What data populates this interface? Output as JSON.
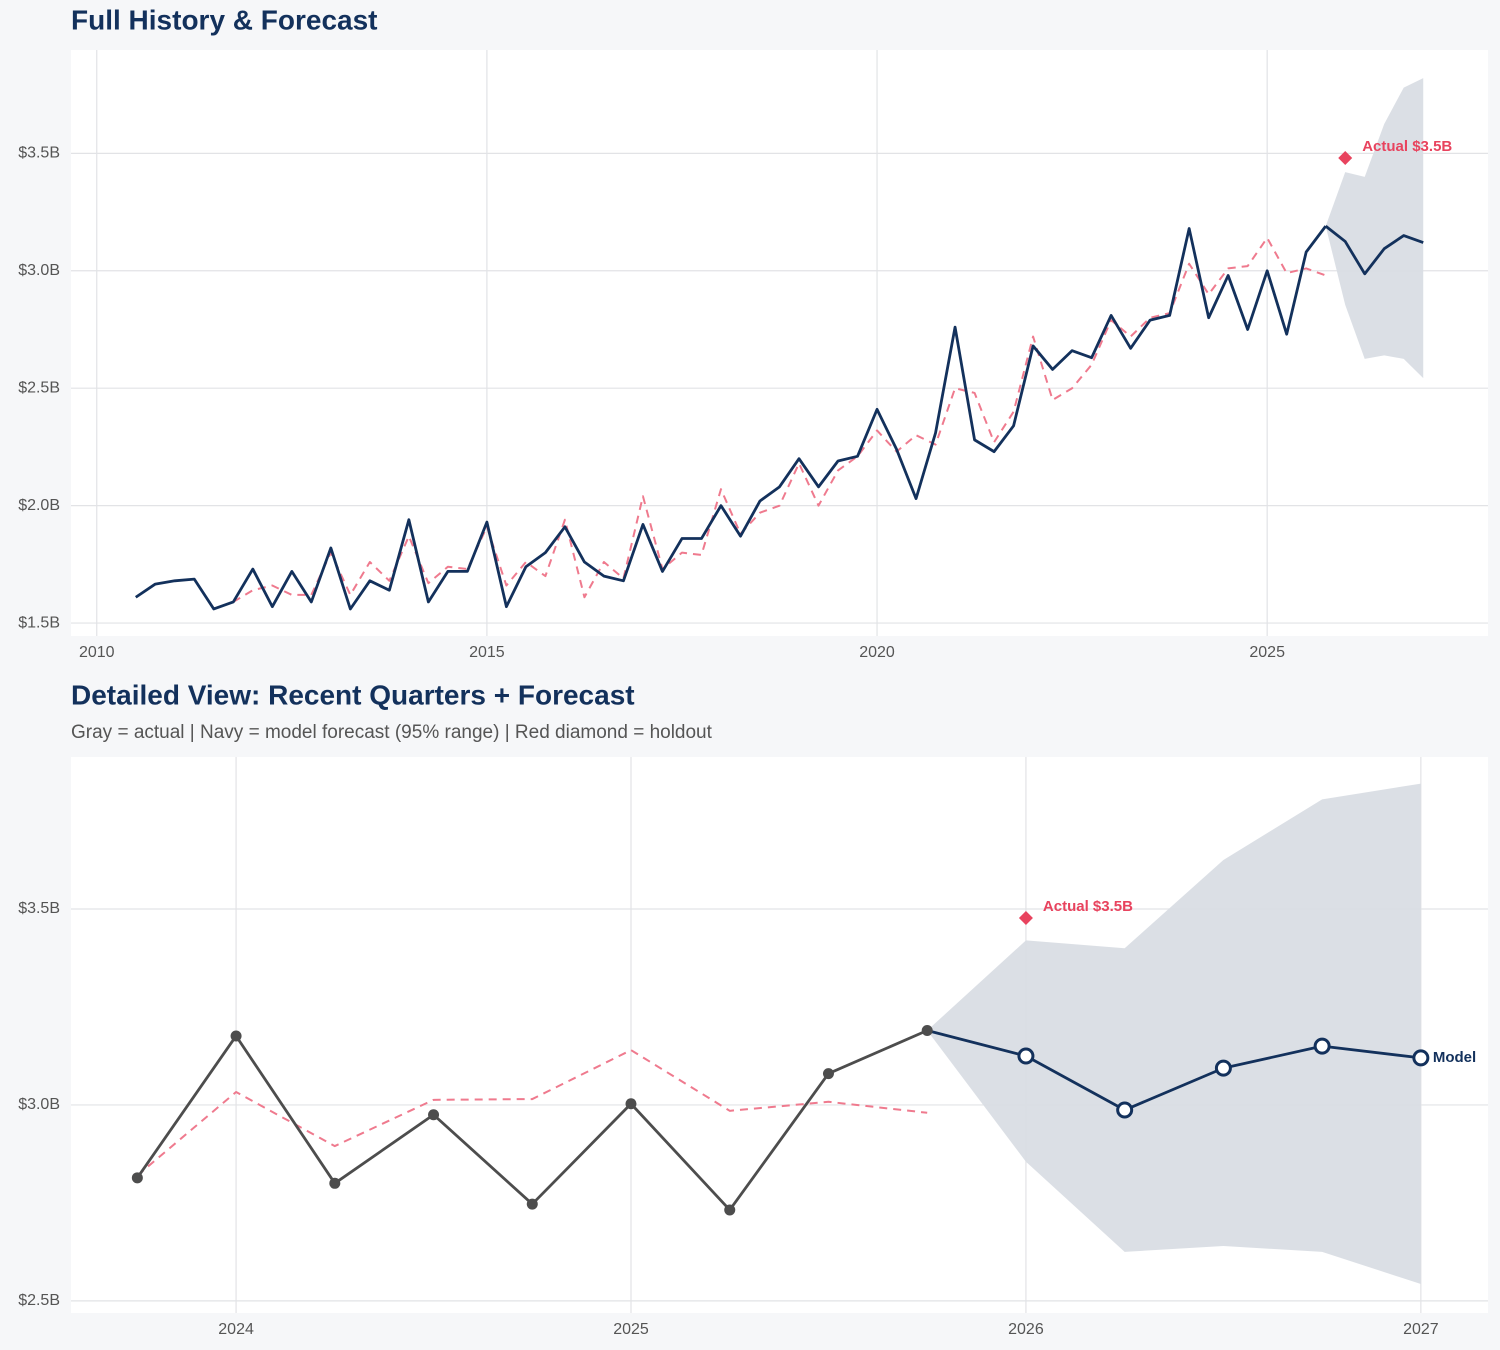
{
  "chart_data": [
    {
      "type": "line",
      "title": "Full History & Forecast",
      "xlim": [
        2009.67,
        2027.83
      ],
      "ylim": [
        1.445,
        3.94
      ],
      "xticks": [
        2010,
        2015,
        2020,
        2025
      ],
      "yticks": [
        {
          "value": 1.5,
          "label": "$1.5B"
        },
        {
          "value": 2.0,
          "label": "$2.0B"
        },
        {
          "value": 2.5,
          "label": "$2.5B"
        },
        {
          "value": 3.0,
          "label": "$3.0B"
        },
        {
          "value": 3.5,
          "label": "$3.5B"
        }
      ],
      "grid": true,
      "band": {
        "color": "#d9dde4",
        "x": [
          2025.75,
          2026.0,
          2026.25,
          2026.5,
          2026.75,
          2027.0
        ],
        "upper": [
          3.19,
          3.42,
          3.4,
          3.625,
          3.78,
          3.82
        ],
        "lower": [
          3.19,
          2.855,
          2.625,
          2.64,
          2.625,
          2.543
        ]
      },
      "series": [
        {
          "color": "#ef7a8e",
          "dash": true,
          "x": [
            2011.75,
            2012,
            2012.25,
            2012.5,
            2012.75,
            2013,
            2013.25,
            2013.5,
            2013.75,
            2014,
            2014.25,
            2014.5,
            2014.75,
            2015,
            2015.25,
            2015.5,
            2015.75,
            2016,
            2016.25,
            2016.5,
            2016.75,
            2017,
            2017.25,
            2017.5,
            2017.75,
            2018,
            2018.25,
            2018.5,
            2018.75,
            2019,
            2019.25,
            2019.5,
            2019.75,
            2020,
            2020.25,
            2020.5,
            2020.75,
            2021,
            2021.25,
            2021.5,
            2021.75,
            2022,
            2022.25,
            2022.5,
            2022.75,
            2023,
            2023.25,
            2023.5,
            2023.75,
            2024,
            2024.25,
            2024.5,
            2024.75,
            2025,
            2025.25,
            2025.5,
            2025.75
          ],
          "values": [
            1.59,
            1.64,
            1.66,
            1.62,
            1.62,
            1.8,
            1.62,
            1.76,
            1.68,
            1.87,
            1.67,
            1.74,
            1.73,
            1.91,
            1.66,
            1.76,
            1.7,
            1.94,
            1.61,
            1.76,
            1.69,
            2.04,
            1.73,
            1.8,
            1.79,
            2.07,
            1.88,
            1.97,
            2.0,
            2.18,
            2.0,
            2.15,
            2.21,
            2.32,
            2.23,
            2.3,
            2.26,
            2.5,
            2.48,
            2.27,
            2.4,
            2.72,
            2.45,
            2.5,
            2.6,
            2.79,
            2.72,
            2.8,
            2.82,
            3.03,
            2.9,
            3.01,
            3.02,
            3.14,
            2.99,
            3.01,
            2.98
          ]
        },
        {
          "color": "#13315c",
          "x": [
            2010.5,
            2010.75,
            2011,
            2011.25,
            2011.5,
            2011.75,
            2012,
            2012.25,
            2012.5,
            2012.75,
            2013,
            2013.25,
            2013.5,
            2013.75,
            2014,
            2014.25,
            2014.5,
            2014.75,
            2015,
            2015.25,
            2015.5,
            2015.75,
            2016,
            2016.25,
            2016.5,
            2016.75,
            2017,
            2017.25,
            2017.5,
            2017.75,
            2018,
            2018.25,
            2018.5,
            2018.75,
            2019,
            2019.25,
            2019.5,
            2019.75,
            2020,
            2020.25,
            2020.5,
            2020.75,
            2021,
            2021.25,
            2021.5,
            2021.75,
            2022,
            2022.25,
            2022.5,
            2022.75,
            2023,
            2023.25,
            2023.5,
            2023.75,
            2024,
            2024.25,
            2024.5,
            2024.75,
            2025,
            2025.25,
            2025.5,
            2025.75
          ],
          "values": [
            1.61,
            1.666,
            1.68,
            1.687,
            1.56,
            1.59,
            1.73,
            1.57,
            1.72,
            1.59,
            1.82,
            1.56,
            1.68,
            1.64,
            1.94,
            1.59,
            1.72,
            1.72,
            1.93,
            1.57,
            1.74,
            1.8,
            1.91,
            1.76,
            1.7,
            1.68,
            1.92,
            1.72,
            1.86,
            1.86,
            2.0,
            1.87,
            2.02,
            2.08,
            2.2,
            2.08,
            2.19,
            2.21,
            2.41,
            2.24,
            2.03,
            2.31,
            2.76,
            2.28,
            2.23,
            2.34,
            2.68,
            2.58,
            2.66,
            2.63,
            2.81,
            2.67,
            2.79,
            2.81,
            3.18,
            2.8,
            2.98,
            2.75,
            3.0,
            2.73,
            3.08,
            3.19
          ]
        },
        {
          "color": "#13315c",
          "x": [
            2025.75,
            2026.0,
            2026.25,
            2026.5,
            2026.75,
            2027.0
          ],
          "values": [
            3.19,
            3.125,
            2.987,
            3.094,
            3.15,
            3.12
          ]
        }
      ],
      "annotation": {
        "x": 2026.0,
        "y": 3.48,
        "label": "Actual $3.5B",
        "color": "#e8435e"
      }
    },
    {
      "type": "line",
      "title": "Detailed View: Recent Quarters + Forecast",
      "subtitle": "Gray = actual  |  Navy = model forecast (95% range)  |  Red diamond = holdout",
      "xlim": [
        2023.582,
        2027.17
      ],
      "ylim": [
        2.469,
        3.888
      ],
      "xticks": [
        2024,
        2025,
        2026,
        2027
      ],
      "yticks": [
        {
          "value": 2.5,
          "label": "$2.5B"
        },
        {
          "value": 3.0,
          "label": "$3.0B"
        },
        {
          "value": 3.5,
          "label": "$3.5B"
        }
      ],
      "grid": true,
      "band": {
        "color": "#d9dde4",
        "x": [
          2025.75,
          2026.0,
          2026.25,
          2026.5,
          2026.75,
          2027.0
        ],
        "upper": [
          3.19,
          3.42,
          3.4,
          3.625,
          3.78,
          3.82
        ],
        "lower": [
          3.19,
          2.855,
          2.625,
          2.64,
          2.625,
          2.543
        ]
      },
      "series": [
        {
          "color": "#ef7a8e",
          "dash": true,
          "x": [
            2023.75,
            2024,
            2024.25,
            2024.5,
            2024.75,
            2025,
            2025.25,
            2025.5,
            2025.75
          ],
          "values": [
            2.82,
            3.033,
            2.895,
            3.013,
            3.015,
            3.14,
            2.985,
            3.008,
            2.98
          ]
        },
        {
          "color": "#4d4d4d",
          "markers": "filled",
          "x": [
            2023.75,
            2024,
            2024.25,
            2024.5,
            2024.75,
            2025,
            2025.25,
            2025.5,
            2025.75
          ],
          "values": [
            2.814,
            3.176,
            2.8,
            2.975,
            2.747,
            3.003,
            2.732,
            3.08,
            3.19
          ]
        },
        {
          "color": "#13315c",
          "markers": "hollow",
          "label": "Model",
          "x": [
            2025.75,
            2026.0,
            2026.25,
            2026.5,
            2026.75,
            2027.0
          ],
          "values": [
            3.19,
            3.125,
            2.987,
            3.094,
            3.15,
            3.12
          ]
        }
      ],
      "annotation": {
        "x": 2026.0,
        "y": 3.477,
        "label": "Actual $3.5B",
        "color": "#e8435e"
      }
    }
  ]
}
